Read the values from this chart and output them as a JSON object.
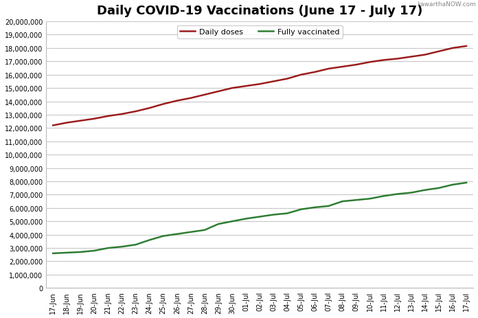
{
  "title": "Daily COVID-19 Vaccinations (June 17 - July 17)",
  "watermark": "kawarthaNOW.com",
  "dates": [
    "17-Jun",
    "18-Jun",
    "19-Jun",
    "20-Jun",
    "21-Jun",
    "22-Jun",
    "23-Jun",
    "24-Jun",
    "25-Jun",
    "26-Jun",
    "27-Jun",
    "28-Jun",
    "29-Jun",
    "30-Jun",
    "01-Jul",
    "02-Jul",
    "03-Jul",
    "04-Jul",
    "05-Jul",
    "06-Jul",
    "07-Jul",
    "08-Jul",
    "09-Jul",
    "10-Jul",
    "11-Jul",
    "12-Jul",
    "13-Jul",
    "14-Jul",
    "15-Jul",
    "16-Jul",
    "17-Jul"
  ],
  "daily_doses": [
    12200000,
    12400000,
    12550000,
    12700000,
    12900000,
    13050000,
    13250000,
    13500000,
    13800000,
    14050000,
    14250000,
    14500000,
    14750000,
    15000000,
    15150000,
    15300000,
    15500000,
    15700000,
    16000000,
    16200000,
    16450000,
    16600000,
    16750000,
    16950000,
    17100000,
    17200000,
    17350000,
    17500000,
    17750000,
    18000000,
    18150000
  ],
  "fully_vaccinated": [
    2600000,
    2650000,
    2700000,
    2800000,
    3000000,
    3100000,
    3250000,
    3600000,
    3900000,
    4050000,
    4200000,
    4350000,
    4800000,
    5000000,
    5200000,
    5350000,
    5500000,
    5600000,
    5900000,
    6050000,
    6150000,
    6500000,
    6600000,
    6700000,
    6900000,
    7050000,
    7150000,
    7350000,
    7500000,
    7750000,
    7900000
  ],
  "daily_doses_color": "#9B1C1C",
  "fully_vaccinated_color": "#2E7D32",
  "background_color": "#FFFFFF",
  "plot_bg_color": "#FFFFFF",
  "grid_color": "#C8C8C8",
  "ylim": [
    0,
    20000000
  ],
  "ytick_step": 1000000,
  "legend_daily": "Daily doses",
  "legend_fully": "Fully vaccinated",
  "title_fontsize": 13,
  "tick_fontsize": 7,
  "legend_fontsize": 8
}
